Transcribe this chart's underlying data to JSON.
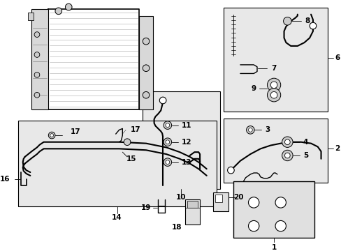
{
  "background_color": "#ffffff",
  "line_color": "#000000",
  "box_fill": "#e8e8e8",
  "fig_width": 4.89,
  "fig_height": 3.6,
  "dpi": 100
}
